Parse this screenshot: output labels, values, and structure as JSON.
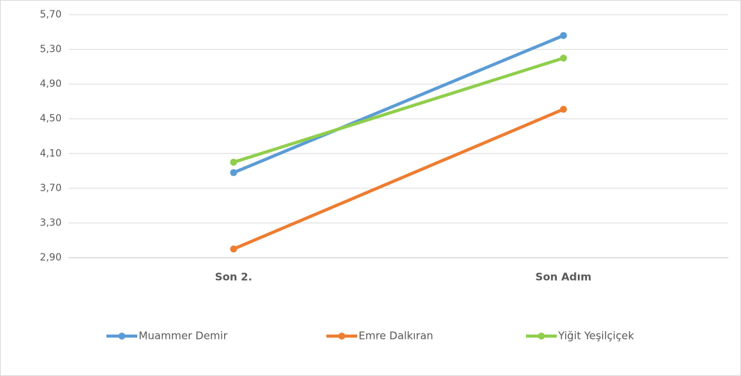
{
  "chart_data": {
    "type": "line",
    "categories": [
      "Son 2.",
      "Son Adım"
    ],
    "series": [
      {
        "name": "Muammer Demir",
        "color": "#5b9bd5",
        "values": [
          3.88,
          5.46
        ]
      },
      {
        "name": "Emre Dalkıran",
        "color": "#ed7d31",
        "values": [
          3.0,
          4.61
        ]
      },
      {
        "name": "Yiğit Yeşilçiçek",
        "color": "#8fce4c",
        "values": [
          4.0,
          5.2
        ]
      }
    ],
    "ylim": [
      2.9,
      5.7
    ],
    "yticks": [
      {
        "value": 2.9,
        "label": "2,90"
      },
      {
        "value": 3.3,
        "label": "3,30"
      },
      {
        "value": 3.7,
        "label": "3,70"
      },
      {
        "value": 4.1,
        "label": "4,10"
      },
      {
        "value": 4.5,
        "label": "4,50"
      },
      {
        "value": 4.9,
        "label": "4,90"
      },
      {
        "value": 5.3,
        "label": "5,30"
      },
      {
        "value": 5.7,
        "label": "5,70"
      }
    ],
    "grid": true,
    "legend": "bottom"
  }
}
